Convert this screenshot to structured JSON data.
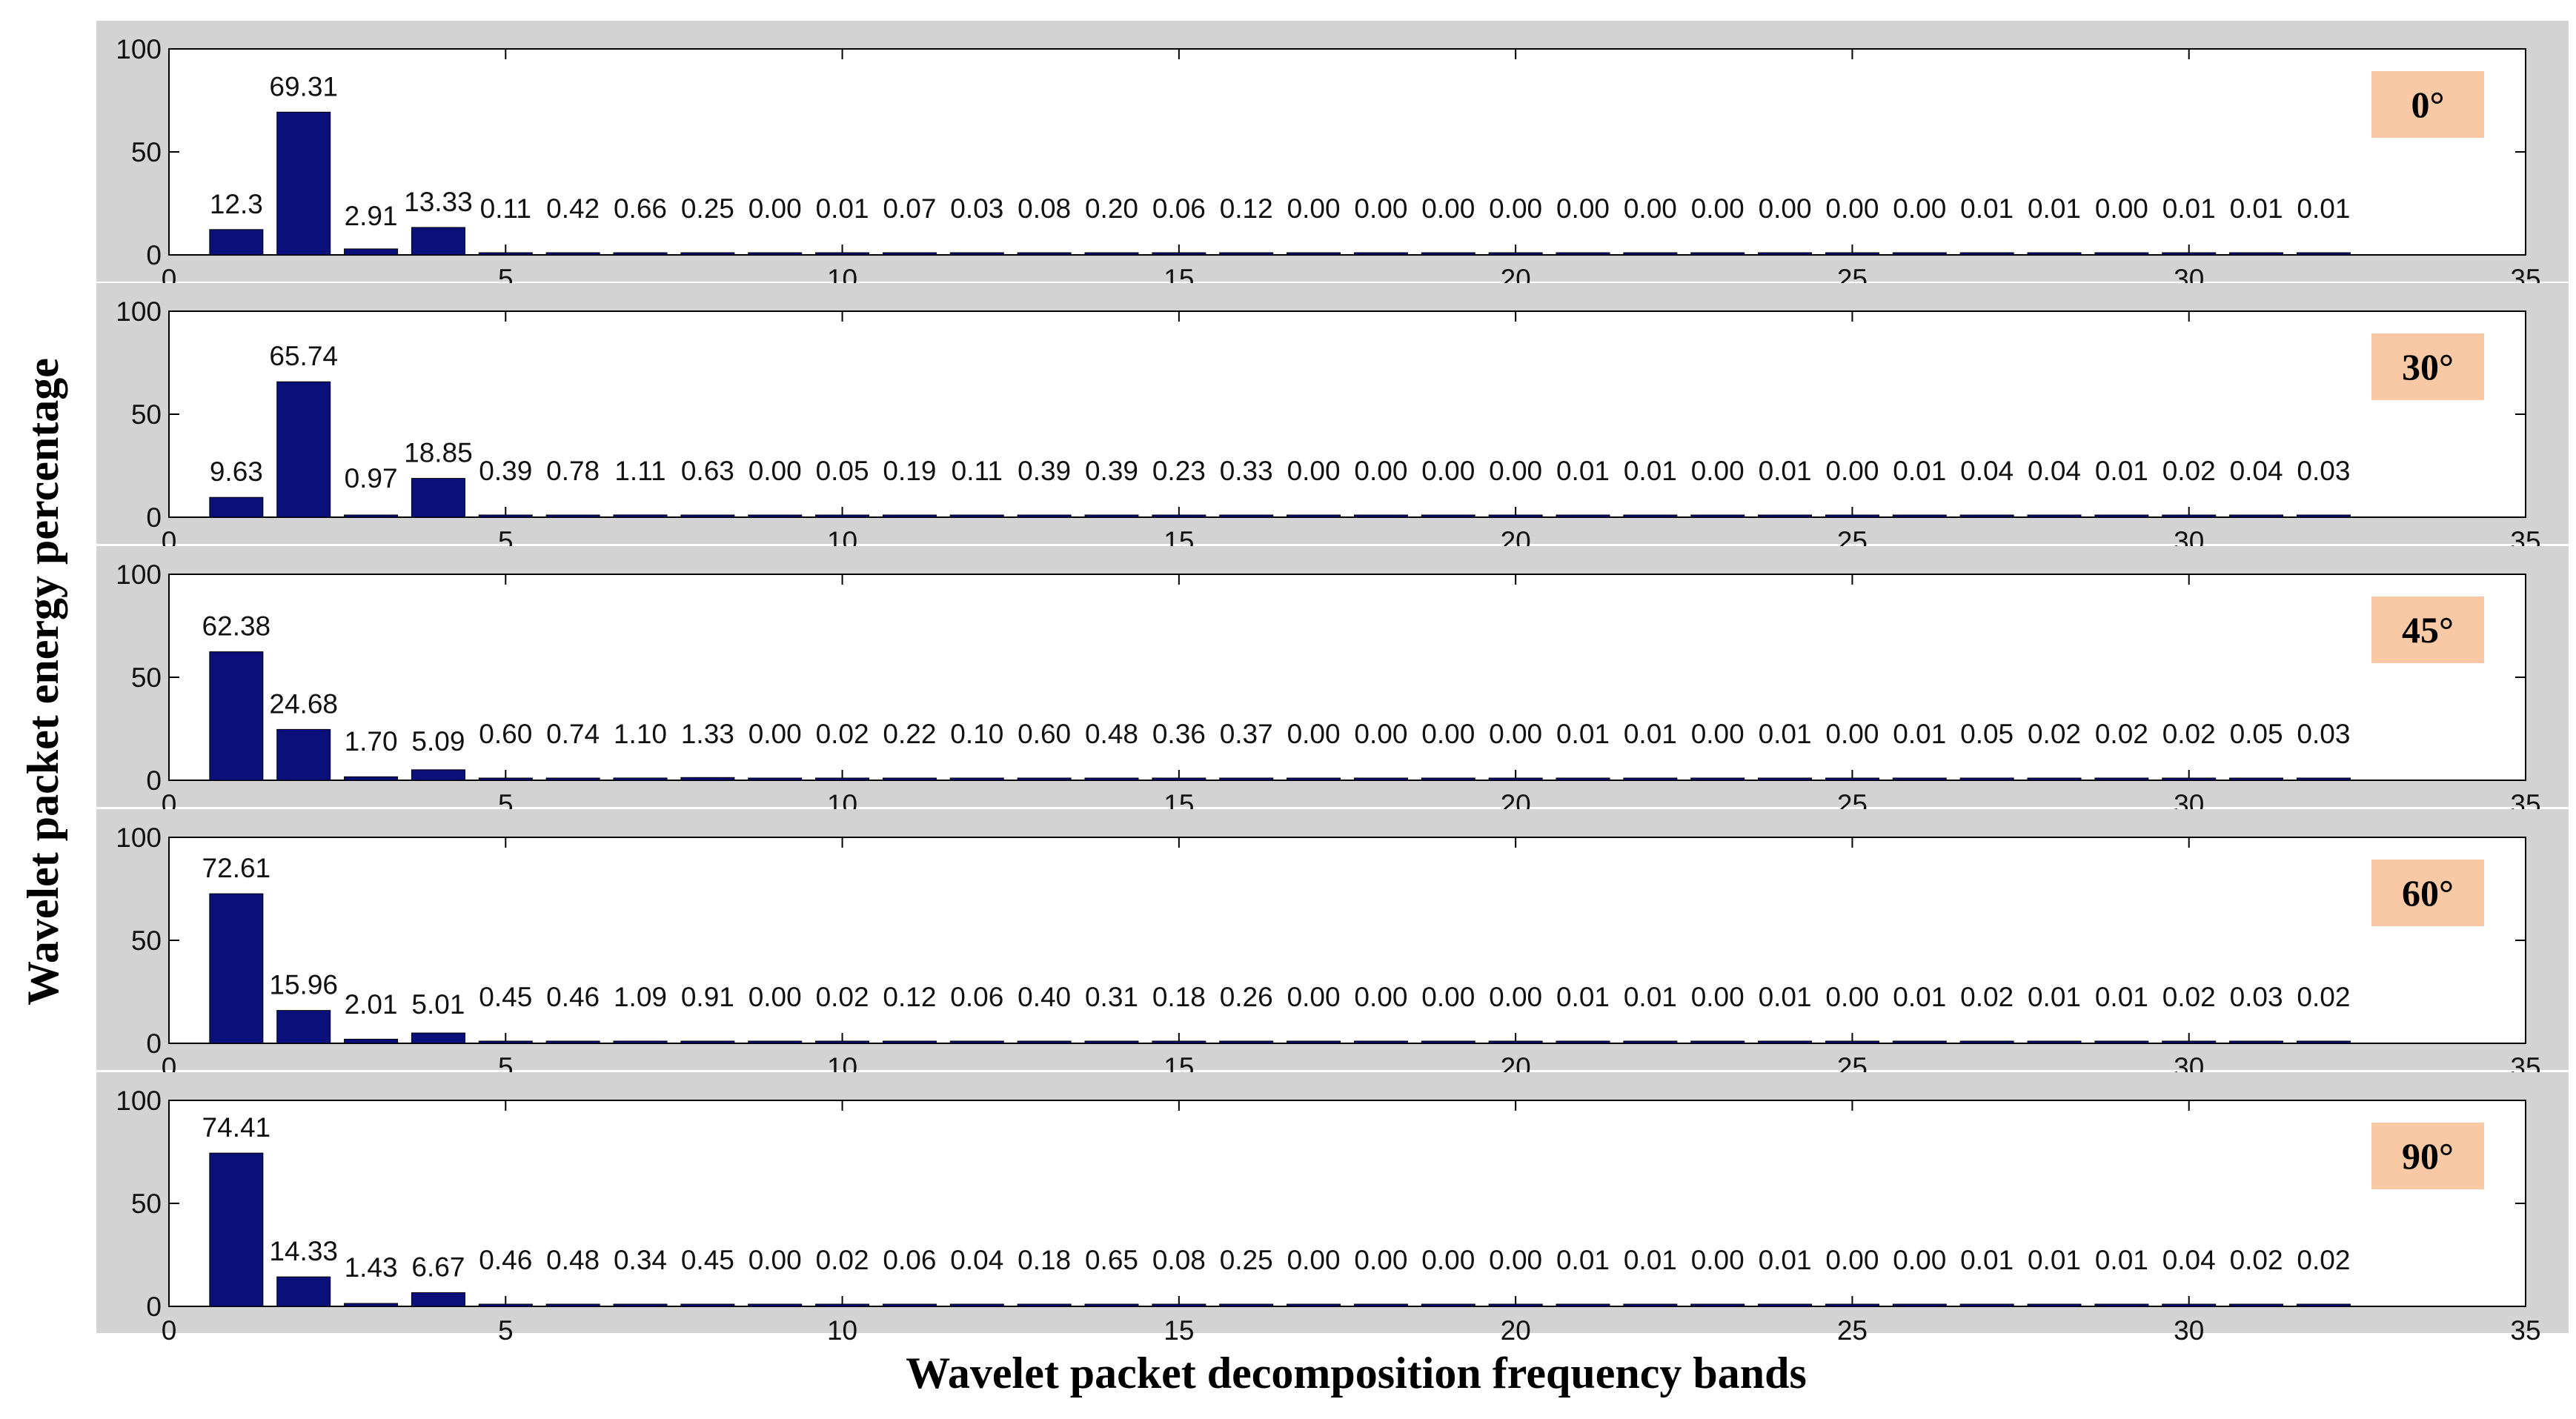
{
  "chart_data": {
    "type": "bar",
    "ylabel": "Wavelet packet energy percentage",
    "xlabel": "Wavelet packet decomposition frequency bands",
    "xlim": [
      0,
      35
    ],
    "ylim": [
      0,
      100
    ],
    "xticks": [
      "0",
      "5",
      "10",
      "15",
      "20",
      "25",
      "30",
      "35"
    ],
    "yticks": [
      "0",
      "50",
      "100"
    ],
    "colors": {
      "bar": "#0a0f7a",
      "angle_box": "#f9c8a4",
      "panel_bg": "#d3d3d3"
    },
    "panels": [
      {
        "angle": "0°",
        "values": [
          12.3,
          69.31,
          2.91,
          13.33,
          0.11,
          0.42,
          0.66,
          0.25,
          0.0,
          0.01,
          0.07,
          0.03,
          0.08,
          0.2,
          0.06,
          0.12,
          0.0,
          0.0,
          0.0,
          0.0,
          0.0,
          0.0,
          0.0,
          0.0,
          0.0,
          0.0,
          0.01,
          0.01,
          0.0,
          0.01,
          0.01,
          0.01
        ],
        "labels": [
          "12.3",
          "69.31",
          "2.91",
          "13.33",
          "0.11",
          "0.42",
          "0.66",
          "0.25",
          "0.00",
          "0.01",
          "0.07",
          "0.03",
          "0.08",
          "0.20",
          "0.06",
          "0.12",
          "0.00",
          "0.00",
          "0.00",
          "0.00",
          "0.00",
          "0.00",
          "0.00",
          "0.00",
          "0.00",
          "0.00",
          "0.01",
          "0.01",
          "0.00",
          "0.01",
          "0.01",
          "0.01"
        ]
      },
      {
        "angle": "30°",
        "values": [
          9.63,
          65.74,
          0.97,
          18.85,
          0.39,
          0.78,
          1.11,
          0.63,
          0.0,
          0.05,
          0.19,
          0.11,
          0.39,
          0.39,
          0.23,
          0.33,
          0.0,
          0.0,
          0.0,
          0.0,
          0.01,
          0.01,
          0.0,
          0.01,
          0.0,
          0.01,
          0.04,
          0.04,
          0.01,
          0.02,
          0.04,
          0.03
        ],
        "labels": [
          "9.63",
          "65.74",
          "0.97",
          "18.85",
          "0.39",
          "0.78",
          "1.11",
          "0.63",
          "0.00",
          "0.05",
          "0.19",
          "0.11",
          "0.39",
          "0.39",
          "0.23",
          "0.33",
          "0.00",
          "0.00",
          "0.00",
          "0.00",
          "0.01",
          "0.01",
          "0.00",
          "0.01",
          "0.00",
          "0.01",
          "0.04",
          "0.04",
          "0.01",
          "0.02",
          "0.04",
          "0.03"
        ]
      },
      {
        "angle": "45°",
        "values": [
          62.38,
          24.68,
          1.7,
          5.09,
          0.6,
          0.74,
          1.1,
          1.33,
          0.0,
          0.02,
          0.22,
          0.1,
          0.6,
          0.48,
          0.36,
          0.37,
          0.0,
          0.0,
          0.0,
          0.0,
          0.01,
          0.01,
          0.0,
          0.01,
          0.0,
          0.01,
          0.05,
          0.02,
          0.02,
          0.02,
          0.05,
          0.03
        ],
        "labels": [
          "62.38",
          "24.68",
          "1.70",
          "5.09",
          "0.60",
          "0.74",
          "1.10",
          "1.33",
          "0.00",
          "0.02",
          "0.22",
          "0.10",
          "0.60",
          "0.48",
          "0.36",
          "0.37",
          "0.00",
          "0.00",
          "0.00",
          "0.00",
          "0.01",
          "0.01",
          "0.00",
          "0.01",
          "0.00",
          "0.01",
          "0.05",
          "0.02",
          "0.02",
          "0.02",
          "0.05",
          "0.03"
        ]
      },
      {
        "angle": "60°",
        "values": [
          72.61,
          15.96,
          2.01,
          5.01,
          0.45,
          0.46,
          1.09,
          0.91,
          0.0,
          0.02,
          0.12,
          0.06,
          0.4,
          0.31,
          0.18,
          0.26,
          0.0,
          0.0,
          0.0,
          0.0,
          0.01,
          0.01,
          0.0,
          0.01,
          0.0,
          0.01,
          0.02,
          0.01,
          0.01,
          0.02,
          0.03,
          0.02
        ],
        "labels": [
          "72.61",
          "15.96",
          "2.01",
          "5.01",
          "0.45",
          "0.46",
          "1.09",
          "0.91",
          "0.00",
          "0.02",
          "0.12",
          "0.06",
          "0.40",
          "0.31",
          "0.18",
          "0.26",
          "0.00",
          "0.00",
          "0.00",
          "0.00",
          "0.01",
          "0.01",
          "0.00",
          "0.01",
          "0.00",
          "0.01",
          "0.02",
          "0.01",
          "0.01",
          "0.02",
          "0.03",
          "0.02"
        ]
      },
      {
        "angle": "90°",
        "values": [
          74.41,
          14.33,
          1.43,
          6.67,
          0.46,
          0.48,
          0.34,
          0.45,
          0.0,
          0.02,
          0.06,
          0.04,
          0.18,
          0.65,
          0.08,
          0.25,
          0.0,
          0.0,
          0.0,
          0.0,
          0.01,
          0.01,
          0.0,
          0.01,
          0.0,
          0.0,
          0.01,
          0.01,
          0.01,
          0.04,
          0.02,
          0.02
        ],
        "labels": [
          "74.41",
          "14.33",
          "1.43",
          "6.67",
          "0.46",
          "0.48",
          "0.34",
          "0.45",
          "0.00",
          "0.02",
          "0.06",
          "0.04",
          "0.18",
          "0.65",
          "0.08",
          "0.25",
          "0.00",
          "0.00",
          "0.00",
          "0.00",
          "0.01",
          "0.01",
          "0.00",
          "0.01",
          "0.00",
          "0.00",
          "0.01",
          "0.01",
          "0.01",
          "0.04",
          "0.02",
          "0.02"
        ]
      }
    ]
  }
}
